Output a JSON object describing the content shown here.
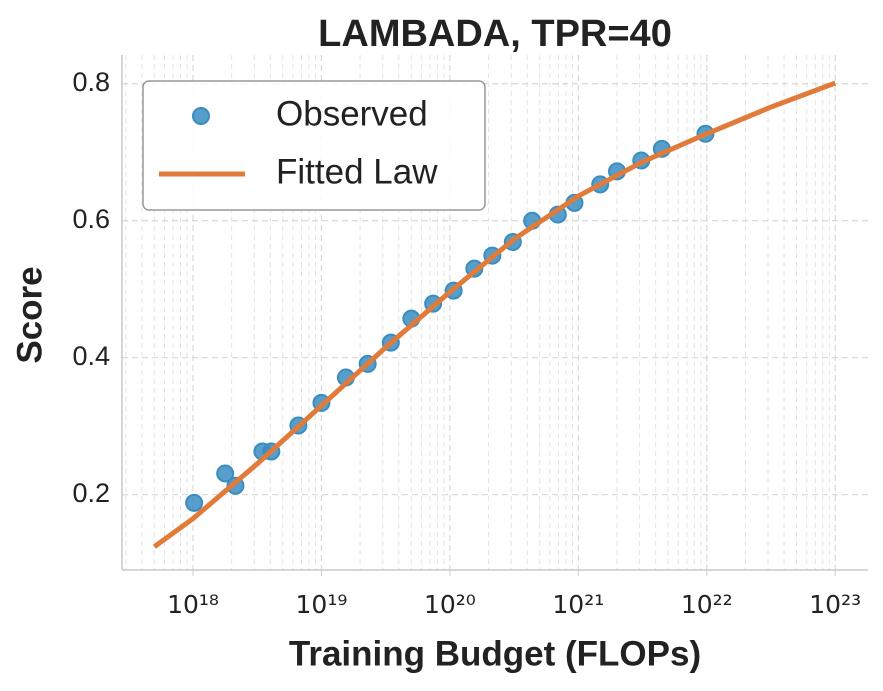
{
  "chart_data": {
    "type": "scatter",
    "title": "LAMBADA, TPR=40",
    "x_label": "Training Budget (FLOPs)",
    "y_label": "Score",
    "xscale": "log",
    "xlim": [
      2.8e+17,
      1.8e+23
    ],
    "ylim": [
      0.09,
      0.842
    ],
    "xticks": [
      {
        "value": 1e+18,
        "label": "10¹⁸"
      },
      {
        "value": 1e+19,
        "label": "10¹⁹"
      },
      {
        "value": 1e+20,
        "label": "10²⁰"
      },
      {
        "value": 1e+21,
        "label": "10²¹"
      },
      {
        "value": 1e+22,
        "label": "10²²"
      },
      {
        "value": 1e+23,
        "label": "10²³"
      }
    ],
    "yticks": [
      0.2,
      0.4,
      0.6,
      0.8
    ],
    "grid": true,
    "minor_grid": true,
    "legend": "upper left",
    "series": [
      {
        "name": "Observed",
        "type": "scatter",
        "color": "#3a8dc1",
        "x": [
          1.02e+18,
          1.78e+18,
          2.14e+18,
          3.47e+18,
          4.07e+18,
          6.61e+18,
          1e+19,
          1.55e+19,
          2.29e+19,
          3.47e+19,
          5.01e+19,
          7.41e+19,
          1.07e+20,
          1.55e+20,
          2.14e+20,
          3.09e+20,
          4.37e+20,
          6.92e+20,
          9.33e+20,
          1.48e+21,
          2e+21,
          3.09e+21,
          4.47e+21,
          9.77e+21
        ],
        "values": [
          0.188,
          0.231,
          0.213,
          0.263,
          0.263,
          0.301,
          0.334,
          0.371,
          0.391,
          0.422,
          0.457,
          0.479,
          0.498,
          0.53,
          0.549,
          0.569,
          0.6,
          0.609,
          0.626,
          0.653,
          0.672,
          0.688,
          0.705,
          0.727
        ]
      },
      {
        "name": "Fitted Law",
        "type": "line",
        "color": "#e07b39",
        "x": [
          5e+17,
          1e+18,
          3.16e+18,
          1e+19,
          3.16e+19,
          1e+20,
          3.16e+20,
          1e+21,
          3.16e+21,
          1e+22,
          3.16e+22,
          1e+23
        ],
        "values": [
          0.124,
          0.165,
          0.245,
          0.33,
          0.415,
          0.496,
          0.573,
          0.636,
          0.686,
          0.727,
          0.766,
          0.801
        ]
      }
    ]
  }
}
